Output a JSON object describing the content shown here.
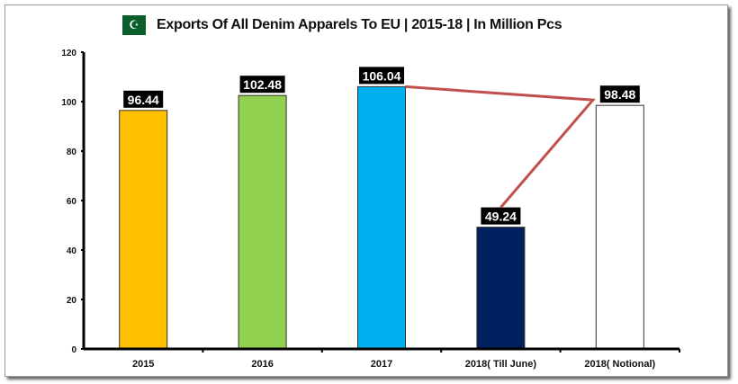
{
  "chart_data": {
    "type": "bar",
    "title": "Exports Of All Denim Apparels To EU | 2015-18 | In Million Pcs",
    "title_icon": "pakistan-flag-icon",
    "categories": [
      "2015",
      "2016",
      "2017",
      "2018( Till June)",
      "2018( Notional)"
    ],
    "values": [
      96.44,
      102.48,
      106.04,
      49.24,
      98.48
    ],
    "data_labels": [
      "96.44",
      "102.48",
      "106.04",
      "49.24",
      "98.48"
    ],
    "colors": [
      "#FFC000",
      "#92D050",
      "#00B0F0",
      "#002060",
      "#FFFFFF"
    ],
    "annotation_line_color": "#C0504D",
    "ylim": [
      0,
      120
    ],
    "yticks": [
      "0",
      "20",
      "40",
      "60",
      "80",
      "100",
      "120"
    ],
    "xlabel": "",
    "ylabel": "",
    "grid": false,
    "legend": "none"
  }
}
